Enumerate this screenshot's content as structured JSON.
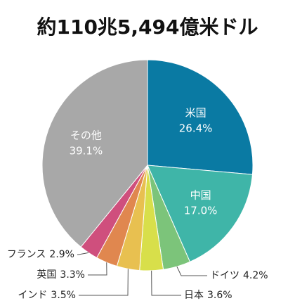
{
  "chart_data": {
    "type": "pie",
    "title": "約110兆5,494億米ドル",
    "categories": [
      "米国",
      "中国",
      "ドイツ",
      "日本",
      "インド",
      "英国",
      "フランス",
      "その他"
    ],
    "values": [
      26.4,
      17.0,
      4.2,
      3.6,
      3.5,
      3.3,
      2.9,
      39.1
    ],
    "value_labels": [
      "26.4%",
      "17.0%",
      "4.2%",
      "3.6%",
      "3.5%",
      "3.3%",
      "2.9%",
      "39.1%"
    ],
    "colors": [
      "#0a7aa3",
      "#3fb5a8",
      "#7cc47a",
      "#d8df4a",
      "#e8c050",
      "#e0874f",
      "#cf4f7d",
      "#a8a8a8"
    ]
  }
}
